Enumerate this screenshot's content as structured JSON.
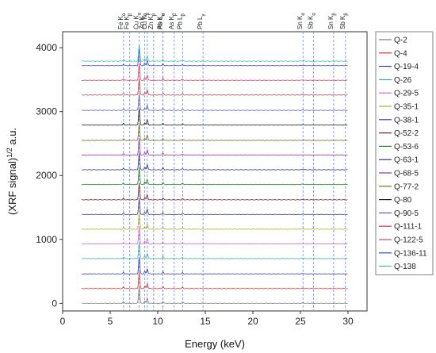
{
  "chart_data": {
    "type": "line",
    "title": "",
    "xlabel": "Energy (keV)",
    "ylabel": "(XRF signal)^{1/2} a.u.",
    "xlim": [
      0,
      32
    ],
    "ylim": [
      -120,
      4250
    ],
    "x_ticks": [
      0,
      5,
      10,
      15,
      20,
      25,
      30
    ],
    "y_ticks": [
      0,
      1000,
      2000,
      3000,
      4000
    ],
    "grid": false,
    "legend_position": "right",
    "peak_markers": [
      {
        "label": "Fe Kα",
        "energy": 6.4
      },
      {
        "label": "Fe Kβ",
        "energy": 7.06
      },
      {
        "label": "Cu Kα",
        "energy": 8.05
      },
      {
        "label": "Cu Kβ",
        "energy": 8.9
      },
      {
        "label": "Zn Kα",
        "energy": 8.64
      },
      {
        "label": "Zn Kβ",
        "energy": 9.57
      },
      {
        "label": "Pb Lα",
        "energy": 10.55
      },
      {
        "label": "As Kα",
        "energy": 10.54
      },
      {
        "label": "As Kβ",
        "energy": 11.73
      },
      {
        "label": "Pb Lβ",
        "energy": 12.61
      },
      {
        "label": "Pb Lγ",
        "energy": 14.76
      },
      {
        "label": "Sn Kα",
        "energy": 25.27
      },
      {
        "label": "Sb Kα",
        "energy": 26.36
      },
      {
        "label": "Sn Kβ",
        "energy": 28.49
      },
      {
        "label": "Sb Kβ",
        "energy": 29.73
      }
    ],
    "x_range_measured": [
      2,
      30
    ],
    "series": [
      {
        "name": "Q-2",
        "color": "#7a7a7a",
        "offset": 0
      },
      {
        "name": "Q-4",
        "color": "#e03030",
        "offset": 230
      },
      {
        "name": "Q-19-4",
        "color": "#3030d0",
        "offset": 460
      },
      {
        "name": "Q-26",
        "color": "#40b0a0",
        "offset": 700
      },
      {
        "name": "Q-29-5",
        "color": "#e060d0",
        "offset": 930
      },
      {
        "name": "Q-35-1",
        "color": "#b0b030",
        "offset": 1160
      },
      {
        "name": "Q-38-1",
        "color": "#404090",
        "offset": 1390
      },
      {
        "name": "Q-52-2",
        "color": "#802020",
        "offset": 1620
      },
      {
        "name": "Q-53-6",
        "color": "#208020",
        "offset": 1860
      },
      {
        "name": "Q-63-1",
        "color": "#3030a0",
        "offset": 2090
      },
      {
        "name": "Q-68-5",
        "color": "#a030a0",
        "offset": 2320
      },
      {
        "name": "Q-77-2",
        "color": "#707020",
        "offset": 2550
      },
      {
        "name": "Q-80",
        "color": "#202020",
        "offset": 2790
      },
      {
        "name": "Q-90-5",
        "color": "#6060c0",
        "offset": 3020
      },
      {
        "name": "Q-111-1",
        "color": "#c04040",
        "offset": 3260
      },
      {
        "name": "Q-122-5",
        "color": "#e04060",
        "offset": 3490
      },
      {
        "name": "Q-136-11",
        "color": "#4040e0",
        "offset": 3720
      },
      {
        "name": "Q-138",
        "color": "#40c0b0",
        "offset": 3790
      }
    ]
  }
}
